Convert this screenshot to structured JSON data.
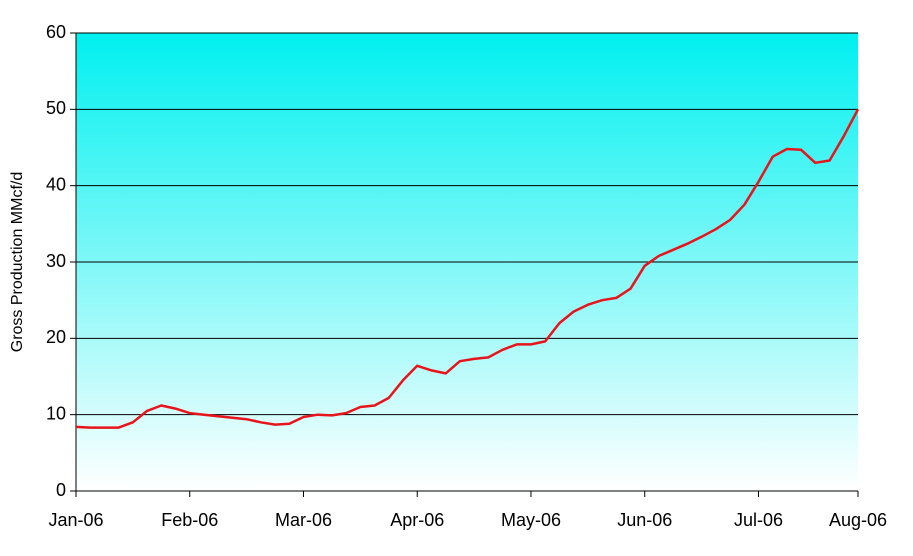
{
  "chart_data": {
    "type": "line",
    "y_label": "Gross Production MMcf/d",
    "categories": [
      "Jan-06",
      null,
      null,
      null,
      null,
      null,
      null,
      null,
      "Feb-06",
      null,
      null,
      null,
      null,
      null,
      null,
      null,
      "Mar-06",
      null,
      null,
      null,
      null,
      null,
      null,
      null,
      "Apr-06",
      null,
      null,
      null,
      null,
      null,
      null,
      null,
      "May-06",
      null,
      null,
      null,
      null,
      null,
      null,
      null,
      "Jun-06",
      null,
      null,
      null,
      null,
      null,
      null,
      null,
      "Jul-06",
      null,
      null,
      null,
      null,
      null,
      null,
      "Aug-06"
    ],
    "series": [
      {
        "name": "Gross Production",
        "color": "#e8141b",
        "values": [
          8.4,
          8.3,
          8.3,
          8.3,
          9.0,
          10.5,
          11.2,
          10.8,
          10.2,
          10.0,
          9.8,
          9.6,
          9.4,
          9.0,
          8.7,
          8.8,
          9.7,
          10.0,
          9.9,
          10.2,
          11.0,
          11.2,
          12.2,
          14.5,
          16.4,
          15.8,
          15.4,
          17.0,
          17.3,
          17.5,
          18.5,
          19.2,
          19.2,
          19.6,
          22.0,
          23.5,
          24.4,
          25.0,
          25.3,
          26.5,
          29.5,
          30.8,
          31.6,
          32.4,
          33.3,
          34.3,
          35.5,
          37.5,
          40.5,
          43.8,
          44.8,
          44.7,
          43.0,
          43.3,
          46.5,
          50
        ]
      }
    ],
    "ylim": [
      0,
      60
    ],
    "yticks": [
      0,
      10,
      20,
      30,
      40,
      50,
      60
    ],
    "grid": true
  }
}
